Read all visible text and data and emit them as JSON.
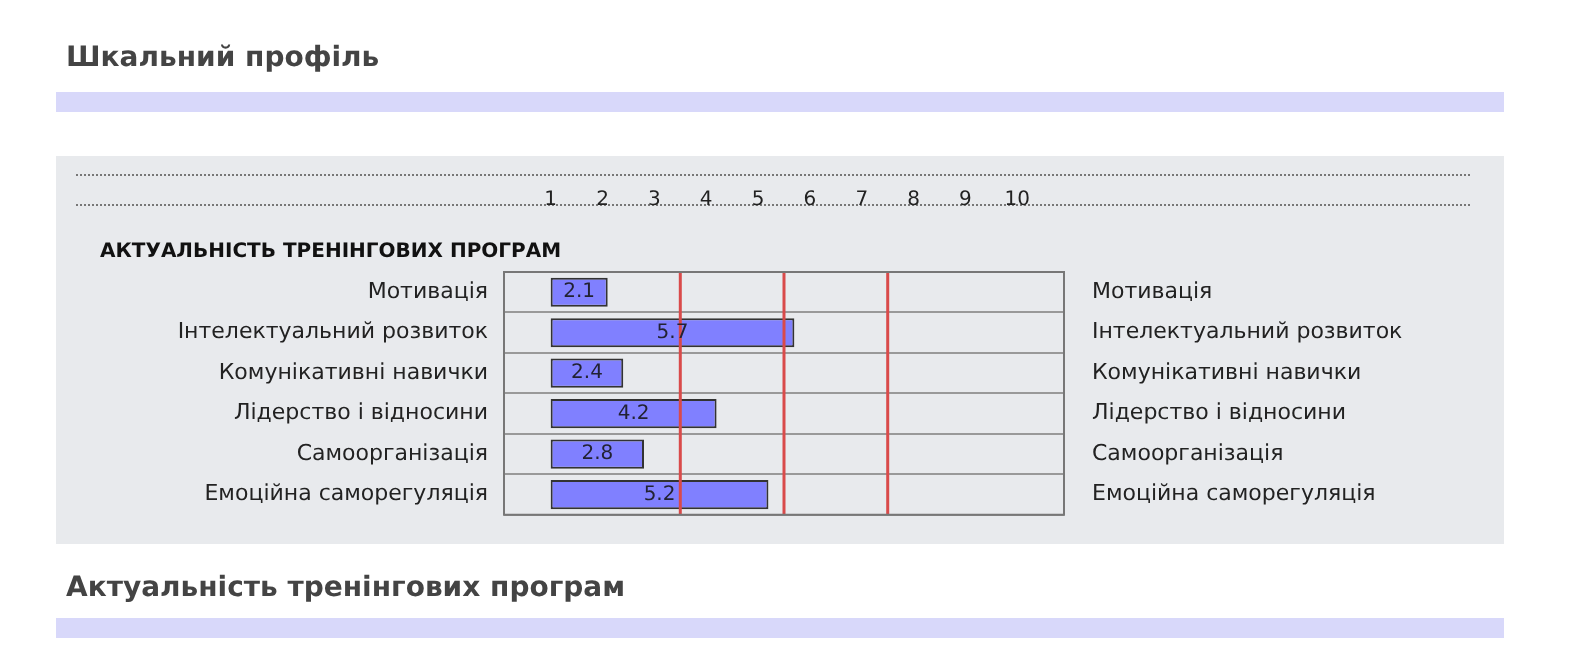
{
  "chart_data": {
    "type": "bar",
    "orientation": "horizontal",
    "title": "Шкальний профіль",
    "subtitle": "АКТУАЛЬНІСТЬ ТРЕНІНГОВИХ ПРОГРАМ",
    "annotations": [
      "Актуальність тренінгових програм"
    ],
    "categories": [
      "Мотивація",
      "Інтелектуальний розвиток",
      "Комунікативні навички",
      "Лідерство і відносини",
      "Самоорганізація",
      "Емоційна саморегуляція"
    ],
    "y2_categories": [
      "Мотивація",
      "Інтелектуальний розвиток",
      "Комунікативні навички",
      "Лідерство і відносини",
      "Самоорганізація",
      "Емоційна саморегуляція"
    ],
    "base": [
      1,
      1,
      1,
      1,
      1,
      1
    ],
    "values": [
      1.1,
      4.7,
      1.4,
      3.2,
      1.8,
      4.2
    ],
    "value_labels": [
      "2.1",
      "5.7",
      "2.4",
      "4.2",
      "2.8",
      "5.2"
    ],
    "color": "#8080ff",
    "xlim": [
      0.1,
      10.9
    ],
    "xticks": [
      1,
      2,
      3,
      4,
      5,
      6,
      7,
      8,
      9,
      10
    ],
    "ref_lines": [
      {
        "axis": "x",
        "value": 3.5,
        "color": "#d94a4a"
      },
      {
        "axis": "x",
        "value": 5.5,
        "color": "#d94a4a"
      },
      {
        "axis": "x",
        "value": 7.5,
        "color": "#d94a4a"
      }
    ],
    "grid": "y",
    "legend": false
  }
}
